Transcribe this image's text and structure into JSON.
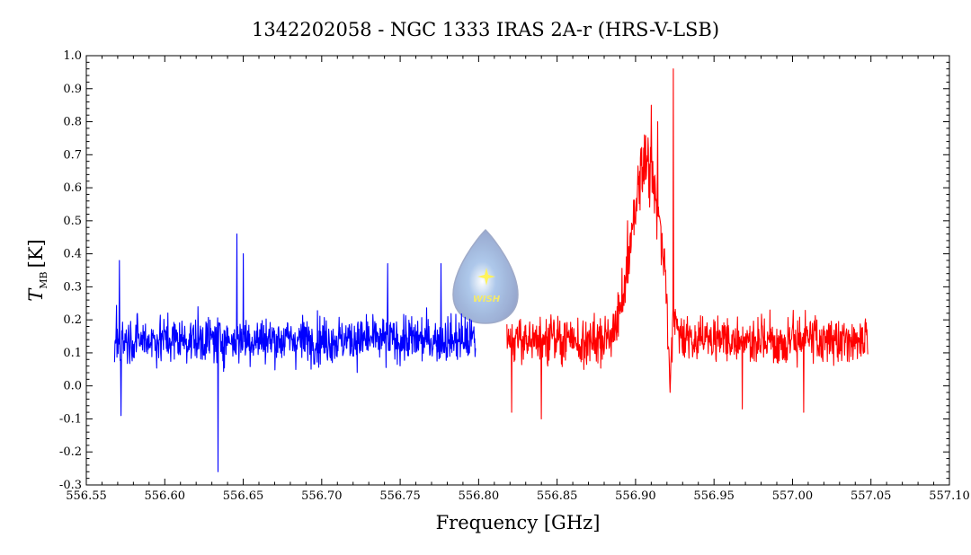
{
  "chart_data": {
    "type": "line",
    "title": "1342202058 - NGC 1333 IRAS 2A-r (HRS-V-LSB)",
    "xlabel": "Frequency [GHz]",
    "ylabel": "T",
    "ylabel_subscript": "MB",
    "ylabel_unit": "[K]",
    "xlim": [
      556.55,
      557.1
    ],
    "ylim": [
      -0.3,
      1.0
    ],
    "x_ticks": [
      "556.55",
      "556.60",
      "556.65",
      "556.70",
      "556.75",
      "556.80",
      "556.85",
      "556.90",
      "556.95",
      "557.00",
      "557.05",
      "557.10"
    ],
    "y_ticks": [
      "-0.3",
      "-0.2",
      "-0.1",
      "0.0",
      "0.1",
      "0.2",
      "0.3",
      "0.4",
      "0.5",
      "0.6",
      "0.7",
      "0.8",
      "0.9",
      "1.0"
    ],
    "logo_text": "WISH",
    "series": [
      {
        "color": "#0000ff",
        "x_range": [
          556.568,
          556.798
        ],
        "noise_baseline": 0.14,
        "noise_amplitude": 0.09,
        "features": [
          {
            "x": 556.571,
            "y": 0.38
          },
          {
            "x": 556.572,
            "y": -0.09
          },
          {
            "x": 556.634,
            "y": -0.26
          },
          {
            "x": 556.646,
            "y": 0.46
          },
          {
            "x": 556.65,
            "y": 0.4
          },
          {
            "x": 556.742,
            "y": 0.37
          },
          {
            "x": 556.776,
            "y": 0.37
          }
        ]
      },
      {
        "color": "#ff0000",
        "x_range": [
          556.818,
          557.048
        ],
        "noise_baseline": 0.14,
        "noise_amplitude": 0.09,
        "features": [
          {
            "x": 556.821,
            "y": -0.08
          },
          {
            "x": 556.84,
            "y": -0.1
          },
          {
            "x": 556.895,
            "y": 0.5
          },
          {
            "x": 556.905,
            "y": 0.62
          },
          {
            "x": 556.91,
            "y": 0.85
          },
          {
            "x": 556.914,
            "y": 0.8
          },
          {
            "x": 556.924,
            "y": 0.96
          },
          {
            "x": 556.922,
            "y": -0.02
          },
          {
            "x": 556.968,
            "y": -0.07
          },
          {
            "x": 557.007,
            "y": -0.08
          }
        ],
        "line_profile": {
          "center": 556.907,
          "peak": 0.68,
          "sigma": 0.009,
          "absorption_center": 556.922
        }
      }
    ]
  }
}
